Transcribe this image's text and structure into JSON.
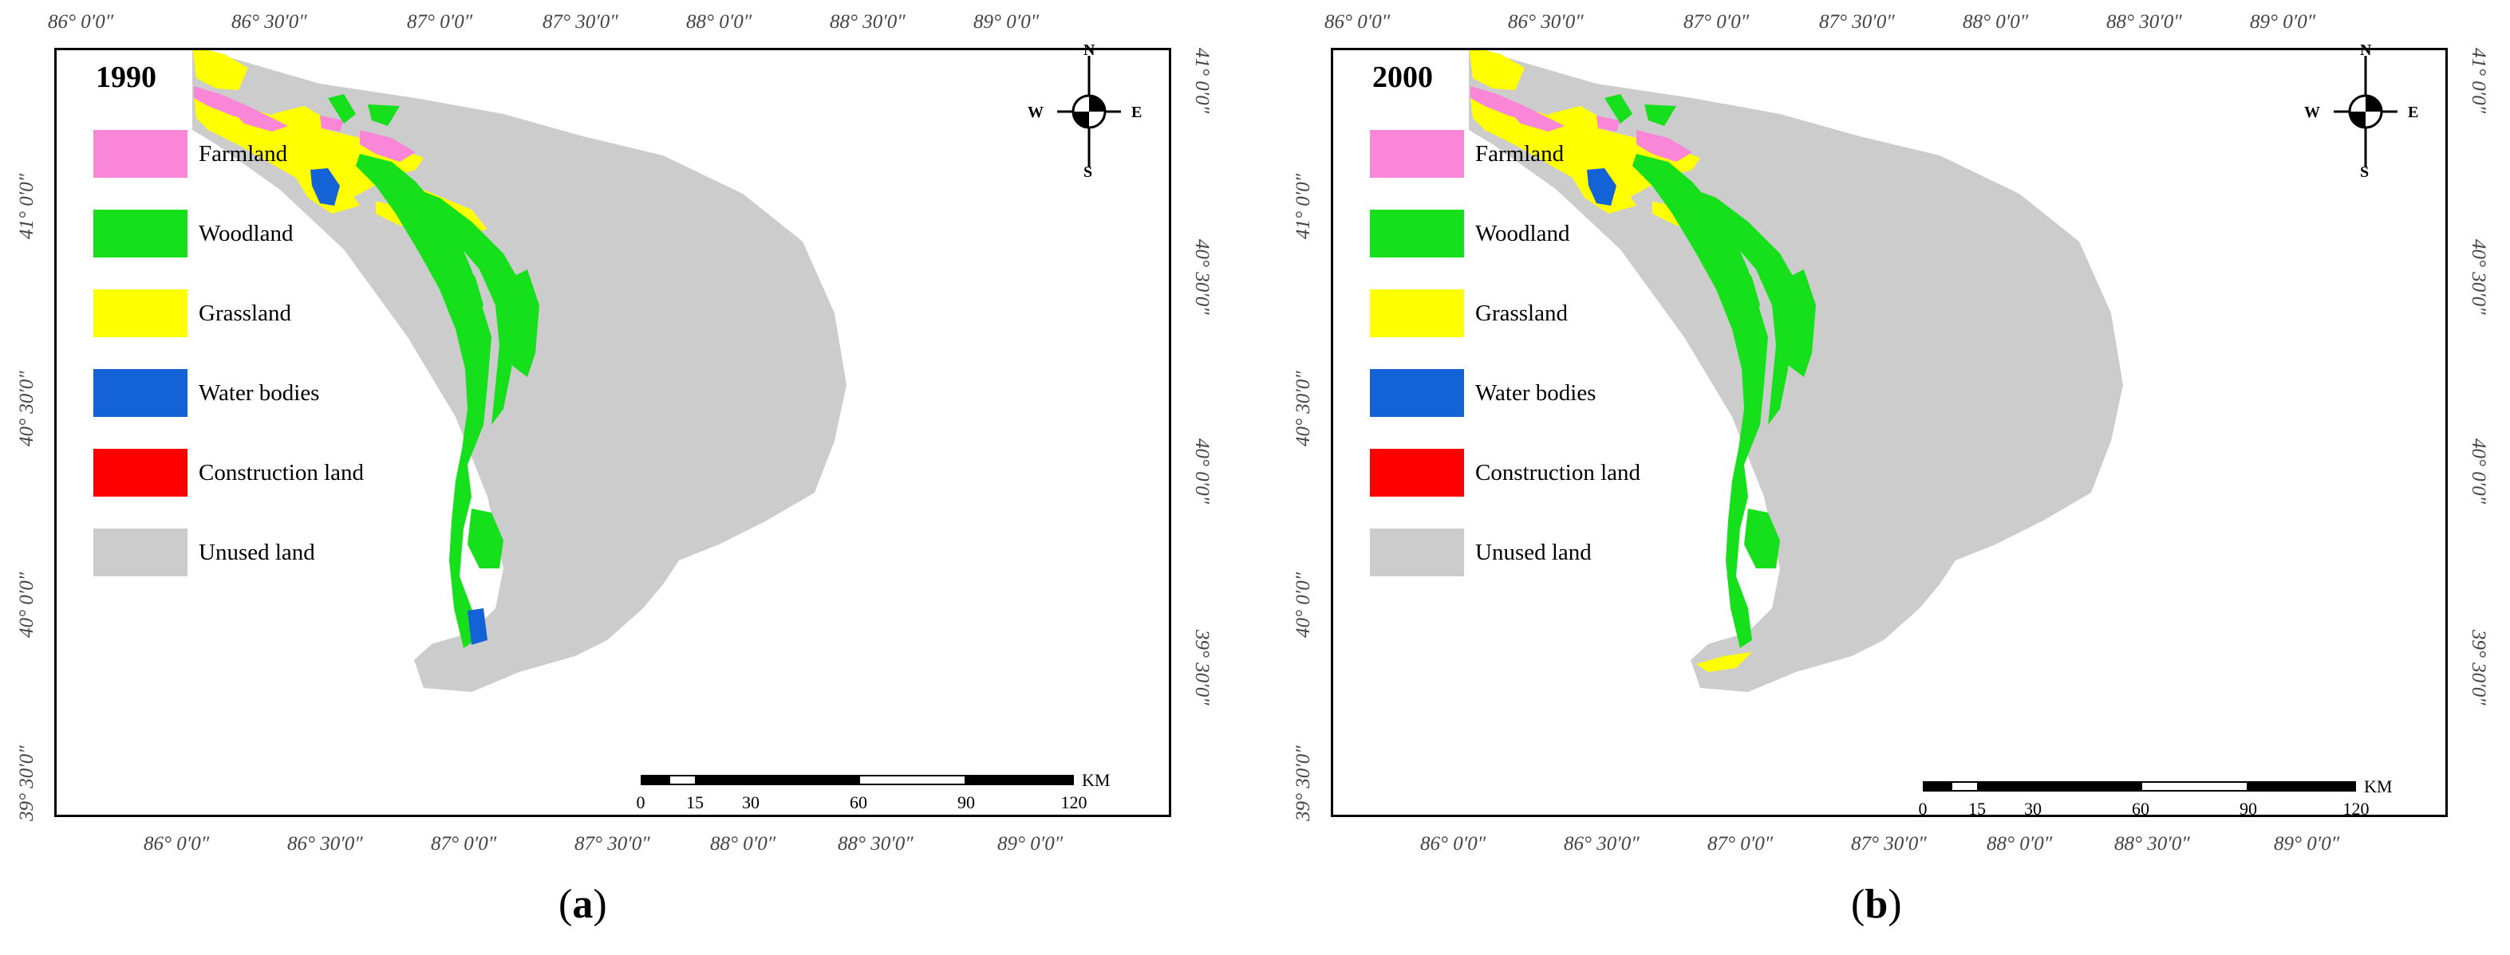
{
  "colors": {
    "farmland": "#f986d6",
    "woodland": "#16e01b",
    "grassland": "#ffff00",
    "water": "#1463d6",
    "construction": "#ff0000",
    "unused": "#cccccc"
  },
  "legend": [
    {
      "label": "Farmland",
      "color": "#f986d6"
    },
    {
      "label": "Woodland",
      "color": "#16e01b"
    },
    {
      "label": "Grassland",
      "color": "#ffff00"
    },
    {
      "label": "Water bodies",
      "color": "#1463d6"
    },
    {
      "label": "Construction land",
      "color": "#ff0000"
    },
    {
      "label": "Unused land",
      "color": "#cccccc"
    }
  ],
  "panels": [
    {
      "year": "1990",
      "caption_letter": "a",
      "top_ticks": [
        "86° 0′0″",
        "86° 30′0″",
        "87° 0′0″",
        "87° 30′0″",
        "88° 0′0″",
        "88° 30′0″",
        "89° 0′0″"
      ],
      "bottom_ticks": [
        "86° 0′0″",
        "86° 30′0″",
        "87° 0′0″",
        "87° 30′0″",
        "88° 0′0″",
        "88° 30′0″",
        "89° 0′0″"
      ],
      "left_ticks": [
        "41° 0′0″",
        "40° 30′0″",
        "40° 0′0″",
        "39° 30′0″"
      ],
      "right_ticks": [
        "41° 0′0″",
        "40° 30′0″",
        "40° 0′0″",
        "39° 30′0″"
      ],
      "scale": {
        "labels": [
          "0",
          "15",
          "30",
          "60",
          "90",
          "120"
        ],
        "unit": "KM"
      }
    },
    {
      "year": "2000",
      "caption_letter": "b",
      "top_ticks": [
        "86° 0′0″",
        "86° 30′0″",
        "87° 0′0″",
        "87° 30′0″",
        "88° 0′0″",
        "88° 30′0″",
        "89° 0′0″"
      ],
      "bottom_ticks": [
        "86° 0′0″",
        "86° 30′0″",
        "87° 0′0″",
        "87° 30′0″",
        "88° 0′0″",
        "88° 30′0″",
        "89° 0′0″"
      ],
      "left_ticks": [
        "41° 0′0″",
        "40° 30′0″",
        "40° 0′0″",
        "39° 30′0″"
      ],
      "right_ticks": [
        "41° 0′0″",
        "40° 30′0″",
        "40° 0′0″",
        "39° 30′0″"
      ],
      "scale": {
        "labels": [
          "0",
          "15",
          "30",
          "60",
          "90",
          "120"
        ],
        "unit": "KM"
      }
    }
  ],
  "compass": {
    "n": "N",
    "s": "S",
    "e": "E",
    "w": "W"
  }
}
